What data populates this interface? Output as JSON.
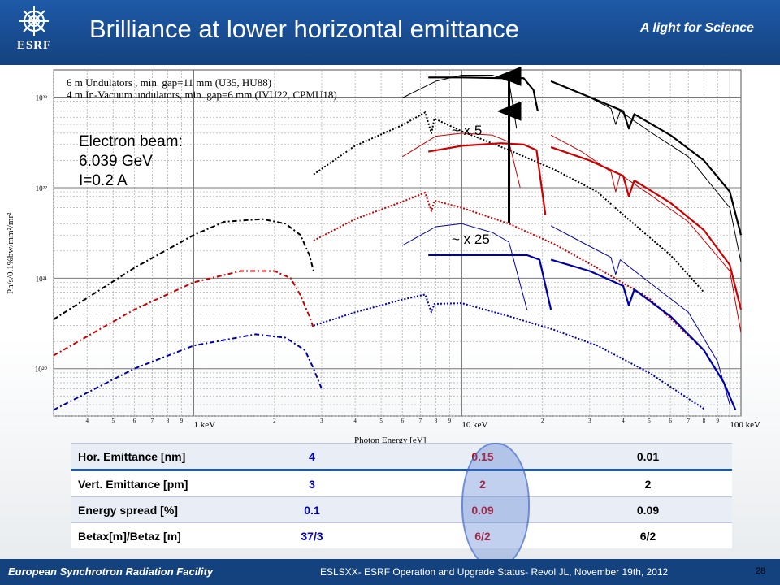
{
  "header": {
    "title": "Brilliance at lower horizontal emittance",
    "tagline": "A light for Science",
    "logo_text": "ESRF"
  },
  "annotations": {
    "legend_line1": "6 m Undulators , min. gap=11 mm (U35, HU88)",
    "legend_line2": "4 m In-Vacuum undulators, min. gap=6 mm (IVU22, CPMU18)",
    "beam_title": "Electron beam:",
    "beam_energy": "6.039 GeV",
    "beam_current": "I=0.2 A",
    "factor_top": "~ x 5",
    "factor_bottom": "~ x 25"
  },
  "chart_data": {
    "type": "line",
    "xlabel": "Photon Energy [eV]",
    "ylabel": "Ph/s/0.1%bw/mm²/mr²",
    "x_scale": "log",
    "y_scale": "log",
    "xlim": [
      300,
      110000
    ],
    "ylim": [
      3e+19,
      2e+23
    ],
    "x_major_ticks": [
      {
        "value": 1000,
        "label": "1 keV"
      },
      {
        "value": 10000,
        "label": "10 keV"
      },
      {
        "value": 100000,
        "label": "100 keV"
      }
    ],
    "x_minor_tick_labels": [
      "4",
      "5",
      "6",
      "7",
      "8",
      "9"
    ],
    "x_minor_tick_labels_decade2": [
      "2",
      "3",
      "4",
      "5",
      "6",
      "7",
      "8",
      "9"
    ],
    "x_minor_tick_labels_decade3": [
      "2",
      "3",
      "4",
      "5",
      "6",
      "7",
      "8",
      "9"
    ],
    "y_ticks": [
      {
        "value": 1e+20,
        "label": "10²⁰"
      },
      {
        "value": 1e+21,
        "label": "10²¹"
      },
      {
        "value": 1e+22,
        "label": "10²²"
      },
      {
        "value": 1e+23,
        "label": "10²³"
      }
    ],
    "grid": true,
    "series": [
      {
        "color": "#000000",
        "style": "dashdot",
        "points": [
          [
            300,
            3.5e+20
          ],
          [
            600,
            1.3e+21
          ],
          [
            1000,
            3e+21
          ],
          [
            1300,
            4.2e+21
          ],
          [
            1800,
            4.5e+21
          ],
          [
            2200,
            4e+21
          ],
          [
            2500,
            3e+21
          ],
          [
            2700,
            1.8e+21
          ],
          [
            2800,
            1.2e+21
          ]
        ]
      },
      {
        "color": "#cc0000",
        "style": "dashdot",
        "points": [
          [
            300,
            1.4e+20
          ],
          [
            600,
            4.5e+20
          ],
          [
            1000,
            9e+20
          ],
          [
            1500,
            1.2e+21
          ],
          [
            2000,
            1.2e+21
          ],
          [
            2300,
            1e+21
          ],
          [
            2500,
            6.5e+20
          ],
          [
            2700,
            3.8e+20
          ],
          [
            2800,
            2.8e+20
          ]
        ]
      },
      {
        "color": "#0000aa",
        "style": "dashdot",
        "points": [
          [
            300,
            3.5e+19
          ],
          [
            600,
            1e+20
          ],
          [
            1000,
            1.8e+20
          ],
          [
            1700,
            2.4e+20
          ],
          [
            2200,
            2.2e+20
          ],
          [
            2600,
            1.6e+20
          ],
          [
            2800,
            1e+20
          ],
          [
            3000,
            6e+19
          ]
        ]
      },
      {
        "color": "#000000",
        "style": "dotted",
        "points": [
          [
            2800,
            1.4e+22
          ],
          [
            4000,
            2.9e+22
          ],
          [
            6000,
            4.9e+22
          ],
          [
            7300,
            6.8e+22
          ],
          [
            7700,
            4e+22
          ],
          [
            7900,
            5.8e+22
          ],
          [
            10000,
            4.2e+22
          ],
          [
            15000,
            2.6e+22
          ],
          [
            22000,
            1.6e+22
          ],
          [
            32000,
            9e+21
          ],
          [
            40000,
            5e+21
          ],
          [
            60000,
            1.8e+21
          ],
          [
            80000,
            7e+20
          ]
        ]
      },
      {
        "color": "#cc0000",
        "style": "dotted",
        "points": [
          [
            2800,
            2.6e+21
          ],
          [
            4000,
            4.5e+21
          ],
          [
            6000,
            7e+21
          ],
          [
            7300,
            8.8e+21
          ],
          [
            7700,
            5.5e+21
          ],
          [
            7900,
            7.2e+21
          ],
          [
            10000,
            6e+21
          ],
          [
            15000,
            4e+21
          ],
          [
            22000,
            2.4e+21
          ],
          [
            32000,
            1.3e+21
          ],
          [
            50000,
            6e+20
          ],
          [
            80000,
            1.6e+20
          ]
        ]
      },
      {
        "color": "#0000aa",
        "style": "dotted",
        "points": [
          [
            2800,
            3e+20
          ],
          [
            4000,
            4.2e+20
          ],
          [
            6000,
            5.8e+20
          ],
          [
            7300,
            6.6e+20
          ],
          [
            7700,
            4.2e+20
          ],
          [
            7900,
            5.2e+20
          ],
          [
            10000,
            5.3e+20
          ],
          [
            15000,
            3.8e+20
          ],
          [
            22000,
            2.7e+20
          ],
          [
            32000,
            1.8e+20
          ],
          [
            50000,
            9e+19
          ],
          [
            80000,
            3.6e+19
          ]
        ]
      },
      {
        "color": "#000000",
        "style": "thin",
        "points": [
          [
            6000,
            9.8e+22
          ],
          [
            8000,
            1.5e+23
          ],
          [
            10000,
            1.75e+23
          ],
          [
            13000,
            1.75e+23
          ],
          [
            15000,
            1.5e+23
          ],
          [
            16000,
            4.5e+22
          ]
        ]
      },
      {
        "color": "#cc0000",
        "style": "thin",
        "points": [
          [
            6000,
            2.2e+22
          ],
          [
            8000,
            3.7e+22
          ],
          [
            10000,
            4e+22
          ],
          [
            13000,
            3.8e+22
          ],
          [
            15000,
            3.2e+22
          ],
          [
            16500,
            1e+22
          ]
        ]
      },
      {
        "color": "#0000aa",
        "style": "thin",
        "points": [
          [
            6000,
            2.3e+21
          ],
          [
            8000,
            3.7e+21
          ],
          [
            10000,
            4e+21
          ],
          [
            13000,
            3.2e+21
          ],
          [
            15000,
            2.5e+21
          ],
          [
            17500,
            4.5e+20
          ]
        ]
      },
      {
        "color": "#000000",
        "style": "thick",
        "points": [
          [
            7500,
            1.65e+23
          ],
          [
            10000,
            1.65e+23
          ],
          [
            14000,
            1.62e+23
          ],
          [
            17000,
            1.62e+23
          ],
          [
            18500,
            1.2e+23
          ],
          [
            19200,
            7e+22
          ]
        ]
      },
      {
        "color": "#cc0000",
        "style": "thick",
        "points": [
          [
            7500,
            2.5e+22
          ],
          [
            10000,
            2.9e+22
          ],
          [
            14000,
            3.1e+22
          ],
          [
            17000,
            3e+22
          ],
          [
            19000,
            2.6e+22
          ],
          [
            20500,
            5e+21
          ]
        ]
      },
      {
        "color": "#0000aa",
        "style": "thick",
        "points": [
          [
            7500,
            1.8e+21
          ],
          [
            10000,
            1.8e+21
          ],
          [
            14000,
            1.8e+21
          ],
          [
            17500,
            1.8e+21
          ],
          [
            19500,
            1.6e+21
          ],
          [
            21500,
            4.5e+20
          ]
        ]
      },
      {
        "color": "#000000",
        "style": "thin",
        "points": [
          [
            21500,
            1.5e+23
          ],
          [
            28000,
            1.1e+23
          ],
          [
            36000,
            7.5e+22
          ],
          [
            37500,
            5e+22
          ],
          [
            39000,
            7e+22
          ],
          [
            50000,
            4.2e+22
          ],
          [
            70000,
            2.2e+22
          ],
          [
            100000,
            6e+21
          ],
          [
            110000,
            1.5e+21
          ]
        ]
      },
      {
        "color": "#cc0000",
        "style": "thin",
        "points": [
          [
            21500,
            3.8e+22
          ],
          [
            28000,
            2.5e+22
          ],
          [
            36000,
            1.5e+22
          ],
          [
            37500,
            9e+21
          ],
          [
            39000,
            1.4e+22
          ],
          [
            50000,
            8.5e+21
          ],
          [
            70000,
            4.2e+21
          ],
          [
            100000,
            1.2e+21
          ],
          [
            110000,
            2.5e+20
          ]
        ]
      },
      {
        "color": "#0000aa",
        "style": "thin",
        "points": [
          [
            21500,
            3.8e+21
          ],
          [
            28000,
            2.5e+21
          ],
          [
            36000,
            1.7e+21
          ],
          [
            37500,
            1.1e+21
          ],
          [
            39000,
            1.6e+21
          ],
          [
            50000,
            9e+20
          ],
          [
            70000,
            4.2e+20
          ],
          [
            90000,
            1.2e+20
          ],
          [
            100000,
            4e+19
          ]
        ]
      },
      {
        "color": "#000000",
        "style": "thick",
        "points": [
          [
            21500,
            1.5e+23
          ],
          [
            30000,
            1e+23
          ],
          [
            40000,
            7e+22
          ],
          [
            42000,
            4.5e+22
          ],
          [
            44000,
            6.5e+22
          ],
          [
            60000,
            3.8e+22
          ],
          [
            80000,
            2e+22
          ],
          [
            100000,
            9e+21
          ],
          [
            110000,
            3e+21
          ]
        ]
      },
      {
        "color": "#cc0000",
        "style": "thick",
        "points": [
          [
            21500,
            2.8e+22
          ],
          [
            30000,
            2e+22
          ],
          [
            40000,
            1.35e+22
          ],
          [
            42000,
            8e+21
          ],
          [
            44000,
            1.2e+22
          ],
          [
            60000,
            6.8e+21
          ],
          [
            80000,
            3.4e+21
          ],
          [
            100000,
            1.4e+21
          ],
          [
            110000,
            4.5e+20
          ]
        ]
      },
      {
        "color": "#0000aa",
        "style": "thick",
        "points": [
          [
            21500,
            1.6e+21
          ],
          [
            30000,
            1.2e+21
          ],
          [
            40000,
            8.2e+20
          ],
          [
            42000,
            5e+20
          ],
          [
            44000,
            7.5e+20
          ],
          [
            60000,
            3.8e+20
          ],
          [
            80000,
            1.6e+20
          ],
          [
            95000,
            7e+19
          ],
          [
            105000,
            3.5e+19
          ]
        ]
      }
    ],
    "arrows": [
      {
        "x": 15000,
        "y_from": 4.1e+21,
        "y_to": 7e+22
      },
      {
        "x": 15000,
        "y_from": 4.1e+21,
        "y_to": 1.7e+23
      }
    ]
  },
  "table": {
    "rows": [
      {
        "label": "Hor. Emittance [nm]",
        "v1": "4",
        "v2": "0.15",
        "v3": "0.01"
      },
      {
        "label": "Vert. Emittance [pm]",
        "v1": "3",
        "v2": "2",
        "v3": "2"
      },
      {
        "label": "Energy spread [%]",
        "v1": "0.1",
        "v2": "0.09",
        "v3": "0.09"
      },
      {
        "label": "Betax[m]/Betaz [m]",
        "v1": "37/3",
        "v2": "6/2",
        "v3": "6/2"
      }
    ]
  },
  "footer": {
    "facility": "European Synchrotron Radiation Facility",
    "conference": "ESLSXX- ESRF Operation and Upgrade Status- Revol JL, November 19th, 2012",
    "page": "28"
  }
}
